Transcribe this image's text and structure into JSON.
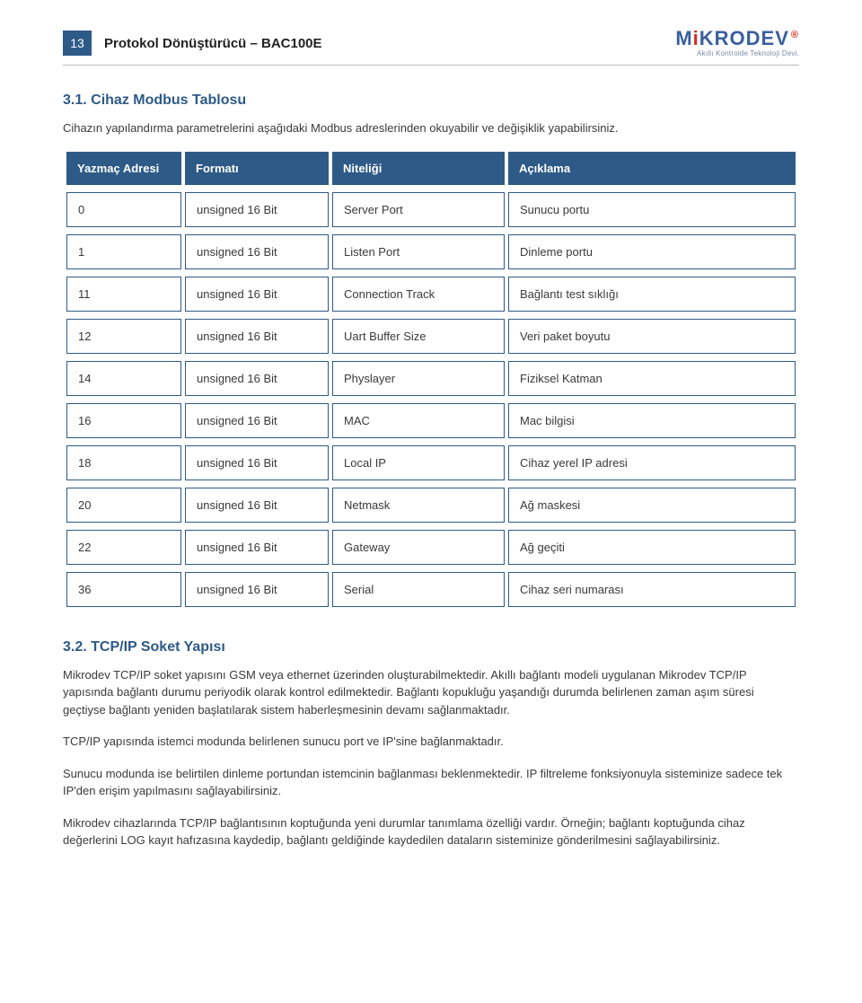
{
  "header": {
    "page_number": "13",
    "doc_title": "Protokol Dönüştürücü – BAC100E",
    "logo_text": "MiKRODEV",
    "logo_reg": "®",
    "logo_sub": "Akıllı Kontrolde Teknoloji Devi."
  },
  "section1": {
    "number": "3.1.",
    "title": "Cihaz Modbus Tablosu",
    "intro": "Cihazın yapılandırma parametrelerini aşağıdaki Modbus adreslerinden okuyabilir ve değişiklik yapabilirsiniz."
  },
  "table": {
    "columns": [
      "Yazmaç Adresi",
      "Formatı",
      "Niteliği",
      "Açıklama"
    ],
    "col_widths_pct": [
      16,
      20,
      24,
      40
    ],
    "header_bg": "#2e5a87",
    "header_fg": "#ffffff",
    "border_color": "#2e5a87",
    "cell_fontsize": 13,
    "rows": [
      [
        "0",
        "unsigned 16 Bit",
        "Server Port",
        "Sunucu portu"
      ],
      [
        "1",
        "unsigned 16 Bit",
        "Listen Port",
        "Dinleme portu"
      ],
      [
        "11",
        "unsigned 16 Bit",
        "Connection Track",
        "Bağlantı test sıklığı"
      ],
      [
        "12",
        "unsigned 16 Bit",
        "Uart Buffer Size",
        "Veri paket boyutu"
      ],
      [
        "14",
        "unsigned 16 Bit",
        "Physlayer",
        "Fiziksel Katman"
      ],
      [
        "16",
        "unsigned 16 Bit",
        "MAC",
        "Mac bilgisi"
      ],
      [
        "18",
        "unsigned 16 Bit",
        "Local IP",
        "Cihaz yerel IP adresi"
      ],
      [
        "20",
        "unsigned 16 Bit",
        "Netmask",
        "Ağ maskesi"
      ],
      [
        "22",
        "unsigned 16 Bit",
        "Gateway",
        "Ağ geçiti"
      ],
      [
        "36",
        "unsigned 16 Bit",
        "Serial",
        "Cihaz seri numarası"
      ]
    ]
  },
  "section2": {
    "number": "3.2.",
    "title": "TCP/IP Soket Yapısı",
    "paragraphs": [
      "Mikrodev TCP/IP soket yapısını GSM veya ethernet üzerinden oluşturabilmektedir. Akıllı bağlantı modeli uygulanan Mikrodev TCP/IP yapısında bağlantı durumu periyodik olarak kontrol edilmektedir. Bağlantı kopukluğu yaşandığı durumda belirlenen zaman aşım süresi geçtiyse bağlantı yeniden başlatılarak sistem haberleşmesinin devamı sağlanmaktadır.",
      "TCP/IP yapısında istemci modunda belirlenen sunucu port ve IP'sine bağlanmaktadır.",
      "Sunucu modunda ise belirtilen dinleme portundan istemcinin bağlanması beklenmektedir. IP filtreleme fonksiyonuyla sisteminize sadece tek IP'den erişim yapılmasını sağlayabilirsiniz.",
      "Mikrodev cihazlarında TCP/IP bağlantısının koptuğunda yeni durumlar tanımlama özelliği vardır. Örneğin; bağlantı koptuğunda cihaz değerlerini LOG kayıt hafızasına kaydedip, bağlantı geldiğinde kaydedilen dataların sisteminize gönderilmesini sağlayabilirsiniz."
    ]
  },
  "colors": {
    "accent": "#2e5a87",
    "text": "#3a3a3a",
    "rule": "#b9b9b9",
    "logo_blue": "#3a5fa0",
    "logo_red": "#d9291c",
    "logo_sub": "#7a8aa8"
  }
}
